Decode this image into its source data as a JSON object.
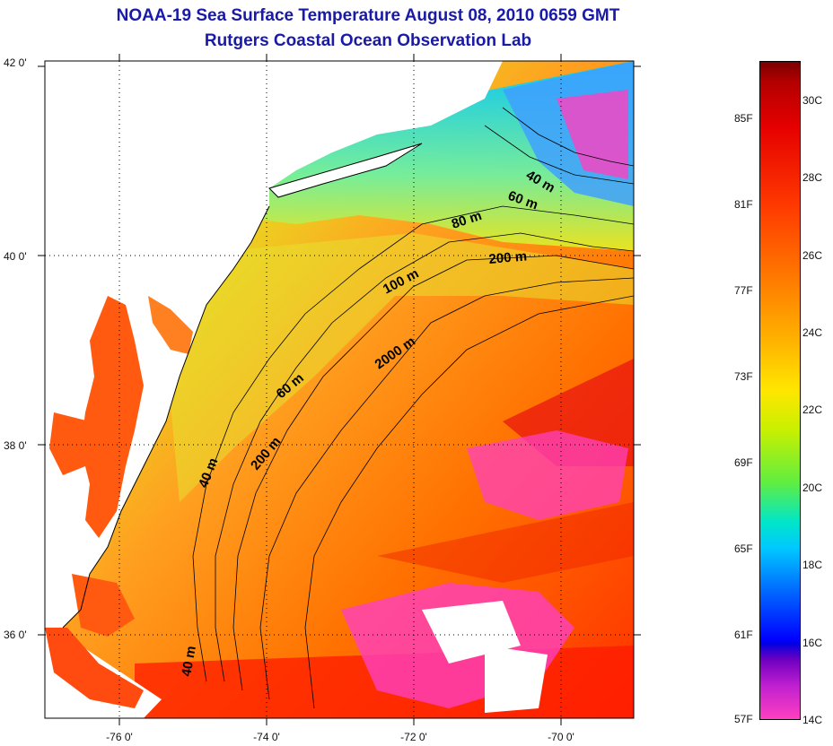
{
  "title": {
    "line1": "NOAA-19 Sea Surface Temperature August 08, 2010 0659 GMT",
    "line2": "Rutgers Coastal Ocean Observation Lab"
  },
  "axes": {
    "lat_labels": [
      "42 0'",
      "40 0'",
      "38 0'",
      "36 0'"
    ],
    "lon_labels": [
      "-76 0'",
      "-74 0'",
      "-72 0'",
      "-70 0'"
    ]
  },
  "contour_labels": [
    "40 m",
    "60 m",
    "80 m",
    "200 m",
    "100 m",
    "2000 m",
    "60 m",
    "200 m",
    "40 m",
    "40 m"
  ],
  "colorbar": {
    "fahrenheit": [
      "85F",
      "81F",
      "77F",
      "73F",
      "69F",
      "65F",
      "61F",
      "57F"
    ],
    "celsius": [
      "30C",
      "28C",
      "26C",
      "24C",
      "22C",
      "20C",
      "18C",
      "16C",
      "14C"
    ]
  },
  "colors": {
    "title": "#1a1aa8",
    "land": "#ffffff",
    "warm": "#ff7a00",
    "cold": "#00c8ff",
    "cloud": "#ff40c0"
  }
}
